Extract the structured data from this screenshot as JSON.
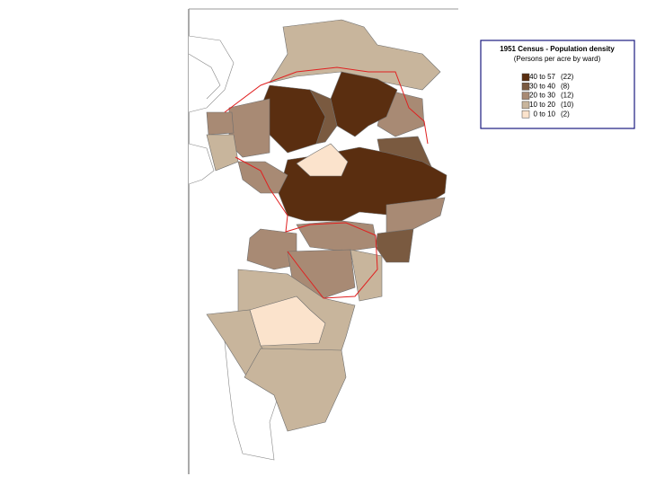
{
  "legend": {
    "title": "1951 Census - Population density",
    "subtitle": "(Persons per acre by ward)",
    "items": [
      {
        "range": "40 to 57",
        "count": "(22)",
        "color": "#5a2e10"
      },
      {
        "range": "30 to 40",
        "count": "(8)",
        "color": "#7a5a40"
      },
      {
        "range": "20 to 30",
        "count": "(12)",
        "color": "#a88a74"
      },
      {
        "range": "10 to 20",
        "count": "(10)",
        "color": "#c8b59c"
      },
      {
        "range": "0 to 10",
        "count": "(2)",
        "color": "#fbe3cc"
      }
    ]
  }
}
